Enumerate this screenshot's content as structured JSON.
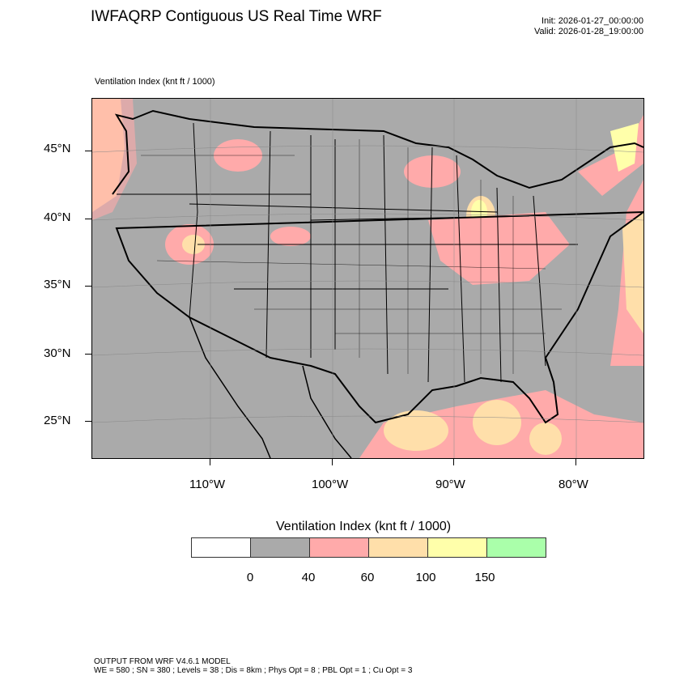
{
  "header": {
    "title": "IWFAQRP Contiguous US Real Time WRF",
    "init": "Init: 2026-01-27_00:00:00",
    "valid": "Valid: 2026-01-28_19:00:00",
    "subtitle": "Ventilation Index   (knt ft / 1000)"
  },
  "map": {
    "lat_labels": [
      "45°N",
      "40°N",
      "35°N",
      "30°N",
      "25°N"
    ],
    "lon_labels": [
      "110°W",
      "100°W",
      "90°W",
      "80°W"
    ],
    "background_color": "#aaaaaa"
  },
  "legend": {
    "title": "Ventilation Index  (knt ft / 1000)",
    "labels": [
      "0",
      "40",
      "60",
      "100",
      "150"
    ],
    "colors": [
      "#ffffff",
      "#aaaaaa",
      "#ffaaaa",
      "#ffdfaa",
      "#ffffaa",
      "#aaffaa"
    ]
  },
  "footer": {
    "line1": "OUTPUT FROM WRF V4.6.1 MODEL",
    "line2": "WE = 580 ; SN = 380 ; Levels = 38 ; Dis = 8km ; Phys Opt = 8 ; PBL Opt = 1 ; Cu Opt = 3"
  }
}
